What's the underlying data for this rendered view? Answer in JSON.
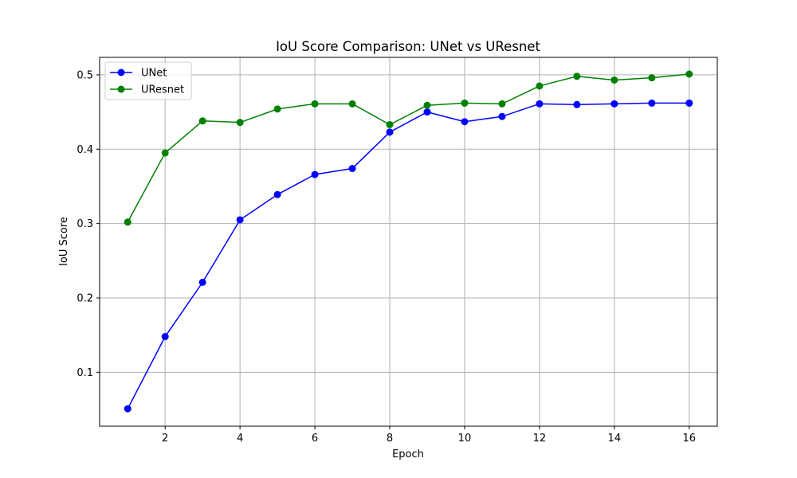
{
  "chart_data": {
    "type": "line",
    "title": "IoU Score Comparison: UNet vs UResnet",
    "xlabel": "Epoch",
    "ylabel": "IoU Score",
    "xlim": [
      0.25,
      16.75
    ],
    "ylim": [
      0.0275,
      0.5235
    ],
    "x_ticks": [
      2,
      4,
      6,
      8,
      10,
      12,
      14,
      16
    ],
    "y_ticks": [
      0.1,
      0.2,
      0.3,
      0.4,
      0.5
    ],
    "grid": true,
    "legend_position": "top-left",
    "x": [
      1,
      2,
      3,
      4,
      5,
      6,
      7,
      8,
      9,
      10,
      11,
      12,
      13,
      14,
      15,
      16
    ],
    "series": [
      {
        "name": "UNet",
        "color": "#0000ff",
        "values": [
          0.051,
          0.148,
          0.221,
          0.305,
          0.339,
          0.366,
          0.374,
          0.423,
          0.45,
          0.437,
          0.444,
          0.461,
          0.46,
          0.461,
          0.462,
          0.462
        ]
      },
      {
        "name": "UResnet",
        "color": "#008000",
        "values": [
          0.302,
          0.395,
          0.438,
          0.436,
          0.454,
          0.461,
          0.461,
          0.433,
          0.459,
          0.462,
          0.461,
          0.485,
          0.498,
          0.493,
          0.496,
          0.501
        ]
      }
    ]
  }
}
